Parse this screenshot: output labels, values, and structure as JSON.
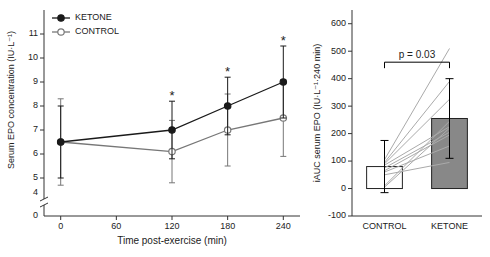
{
  "chart_data": [
    {
      "type": "line",
      "x": [
        0,
        120,
        180,
        240
      ],
      "xlim": [
        -18,
        258
      ],
      "xticks": [
        0,
        60,
        120,
        180,
        240
      ],
      "ylim": [
        4.5,
        12.0
      ],
      "yticks": [
        5,
        6,
        7,
        8,
        9,
        10,
        11
      ],
      "xlabel": "Time post-exercise (min)",
      "ylabel": "Serum EPO concentration (IU·L⁻¹)",
      "legend": "upper left",
      "grid": false,
      "series": [
        {
          "name": "KETONE",
          "color": "#1a1a1a",
          "marker": "circle",
          "values": [
            6.5,
            7.0,
            8.0,
            9.0
          ],
          "errors": [
            1.5,
            1.2,
            1.2,
            1.5
          ]
        },
        {
          "name": "CONTROL",
          "color": "#777777",
          "marker": "open-circle",
          "values": [
            6.5,
            6.1,
            7.0,
            7.5
          ],
          "errors": [
            1.8,
            1.3,
            1.5,
            1.6
          ]
        }
      ],
      "annotations": [
        {
          "text": "0"
        },
        {
          "text": "4"
        },
        {
          "text": "*",
          "x": 120
        },
        {
          "text": "*",
          "x": 180
        },
        {
          "text": "*",
          "x": 240
        }
      ]
    },
    {
      "type": "bar",
      "categories": [
        "CONTROL",
        "KETONE"
      ],
      "ylim": [
        -100,
        650
      ],
      "yticks": [
        -100,
        0,
        100,
        200,
        300,
        400,
        500,
        600
      ],
      "ylabel": "iAUC serum EPO (IU·L⁻¹·240 min)",
      "grid": false,
      "series": [
        {
          "type": "bar",
          "values": [
            80,
            255
          ],
          "errors": [
            95,
            145
          ],
          "colors": [
            "white",
            "#888888"
          ]
        },
        {
          "type": "line",
          "color": "#aaaaaa",
          "values": [
            5,
            220
          ]
        },
        {
          "type": "line",
          "color": "#aaaaaa",
          "values": [
            10,
            245
          ]
        },
        {
          "type": "line",
          "color": "#aaaaaa",
          "values": [
            50,
            95
          ]
        },
        {
          "type": "line",
          "color": "#aaaaaa",
          "values": [
            60,
            155
          ]
        },
        {
          "type": "line",
          "color": "#aaaaaa",
          "values": [
            65,
            195
          ]
        },
        {
          "type": "line",
          "color": "#aaaaaa",
          "values": [
            75,
            205
          ]
        },
        {
          "type": "line",
          "color": "#aaaaaa",
          "values": [
            85,
            225
          ]
        },
        {
          "type": "line",
          "color": "#aaaaaa",
          "values": [
            90,
            325
          ]
        },
        {
          "type": "line",
          "color": "#aaaaaa",
          "values": [
            95,
            390
          ]
        },
        {
          "type": "line",
          "color": "#aaaaaa",
          "values": [
            105,
            510
          ]
        }
      ],
      "annotations": [
        {
          "text": "p = 0.03",
          "y": 460
        }
      ]
    }
  ]
}
